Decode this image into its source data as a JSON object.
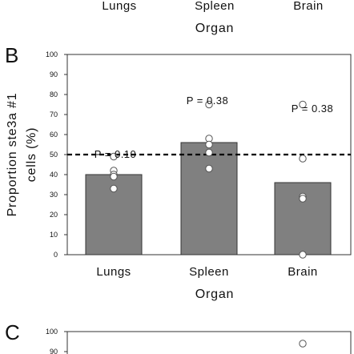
{
  "top_fragment": {
    "categories": [
      "Lungs",
      "Spleen",
      "Brain"
    ],
    "xlabel": "Organ"
  },
  "chart_data": [
    {
      "type": "bar",
      "panel": "B",
      "categories": [
        "Lungs",
        "Spleen",
        "Brain"
      ],
      "values": [
        40,
        56,
        36
      ],
      "points": [
        [
          49,
          42,
          40,
          39,
          33
        ],
        [
          75,
          58,
          55,
          51,
          43
        ],
        [
          75,
          48,
          29,
          28,
          0
        ]
      ],
      "annotations": [
        "P = 0.10",
        "P = 0.38",
        "P = 0.38"
      ],
      "reference_line": 50,
      "ylabel": "Proportion ste3a #1 cells (%)",
      "ylabel_lines": [
        "Proportion ste3a #1",
        "cells (%)"
      ],
      "xlabel": "Organ",
      "ylim": [
        0,
        100
      ],
      "yticks": [
        0,
        10,
        20,
        30,
        40,
        50,
        60,
        70,
        80,
        90,
        100
      ],
      "bar_color": "#808080"
    },
    {
      "type": "bar",
      "panel": "C",
      "ylim": [
        0,
        100
      ],
      "yticks": [
        90,
        100
      ],
      "points": [
        [],
        [],
        [
          94
        ]
      ]
    }
  ]
}
